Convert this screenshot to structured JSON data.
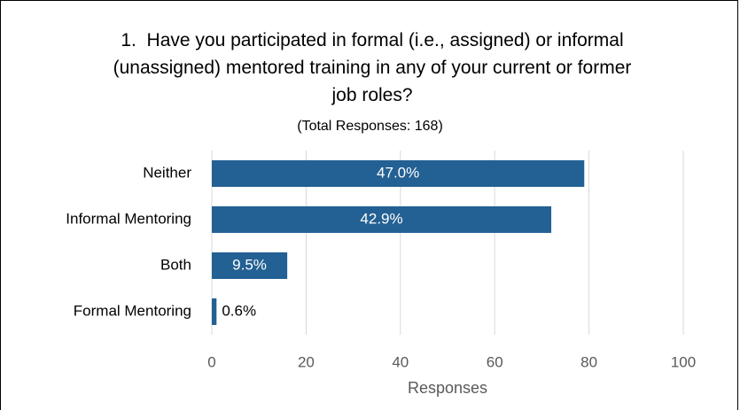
{
  "chart_data": {
    "type": "barh",
    "title": "1.  Have you participated in formal (i.e., assigned) or informal (unassigned) mentored training in any of your current or former job roles?",
    "subtitle": "(Total Responses: 168)",
    "x_label": "Responses",
    "categories": [
      "Neither",
      "Informal Mentoring",
      "Both",
      "Formal Mentoring"
    ],
    "values": [
      79,
      72,
      16,
      1
    ],
    "value_labels": [
      "47.0%",
      "42.9%",
      "9.5%",
      "0.6%"
    ],
    "color": "#236093",
    "xlim": [
      0,
      100
    ],
    "xticks": [
      0,
      20,
      40,
      60,
      80,
      100
    ],
    "grid": true
  }
}
